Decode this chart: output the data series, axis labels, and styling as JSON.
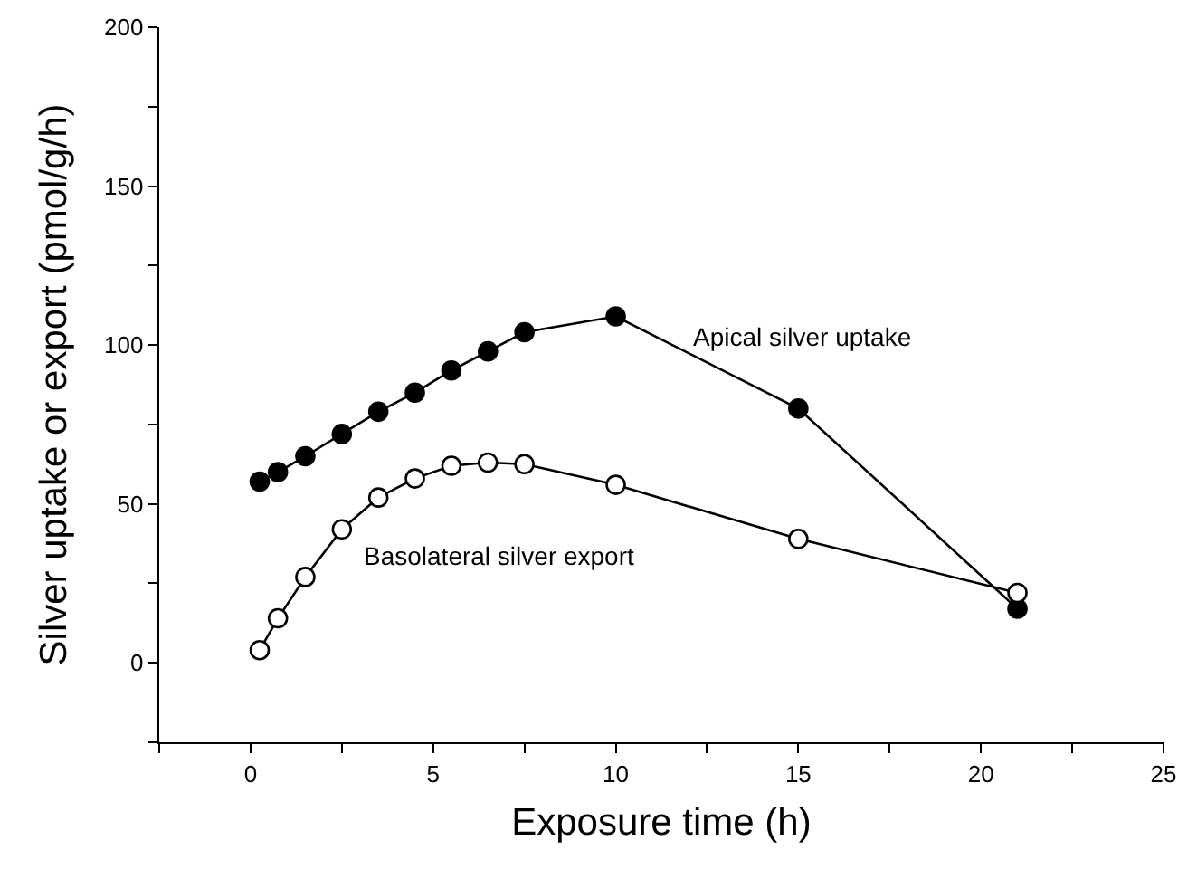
{
  "chart_data": {
    "type": "line",
    "xlabel": "Exposure time (h)",
    "ylabel": "Silver uptake or export (pmol/g/h)",
    "marker": "circle",
    "line_style": "solid",
    "grid": false,
    "legend": false,
    "xlim": [
      -2.5,
      25
    ],
    "xticks": [
      {
        "value": -2.5,
        "label": null
      },
      0,
      {
        "value": 2.5,
        "label": null
      },
      5,
      {
        "value": 7.5,
        "label": null
      },
      10,
      {
        "value": 12.5,
        "label": null
      },
      15,
      {
        "value": 17.5,
        "label": null
      },
      20,
      {
        "value": 22.5,
        "label": null
      },
      25
    ],
    "ylim": [
      -25,
      200
    ],
    "yticks": [
      {
        "value": -25,
        "label": null
      },
      0,
      {
        "value": 25,
        "label": null
      },
      50,
      {
        "value": 75,
        "label": null
      },
      100,
      {
        "value": 125,
        "label": null
      },
      150,
      {
        "value": 175,
        "label": null
      },
      200
    ],
    "x": [
      0.25,
      0.75,
      1.5,
      2.5,
      3.5,
      4.5,
      5.5,
      6.5,
      7.5,
      10,
      15,
      21
    ],
    "series": [
      {
        "name": "Apical silver uptake",
        "color": "#000000",
        "values": [
          57,
          60,
          65,
          72,
          79,
          85,
          92,
          98,
          104,
          109,
          80,
          17
        ]
      },
      {
        "name": "Basolateral silver export",
        "color": "#ffffff",
        "values": [
          4,
          14,
          27,
          42,
          52,
          58,
          62,
          63,
          62.5,
          56,
          39,
          22
        ]
      }
    ]
  }
}
